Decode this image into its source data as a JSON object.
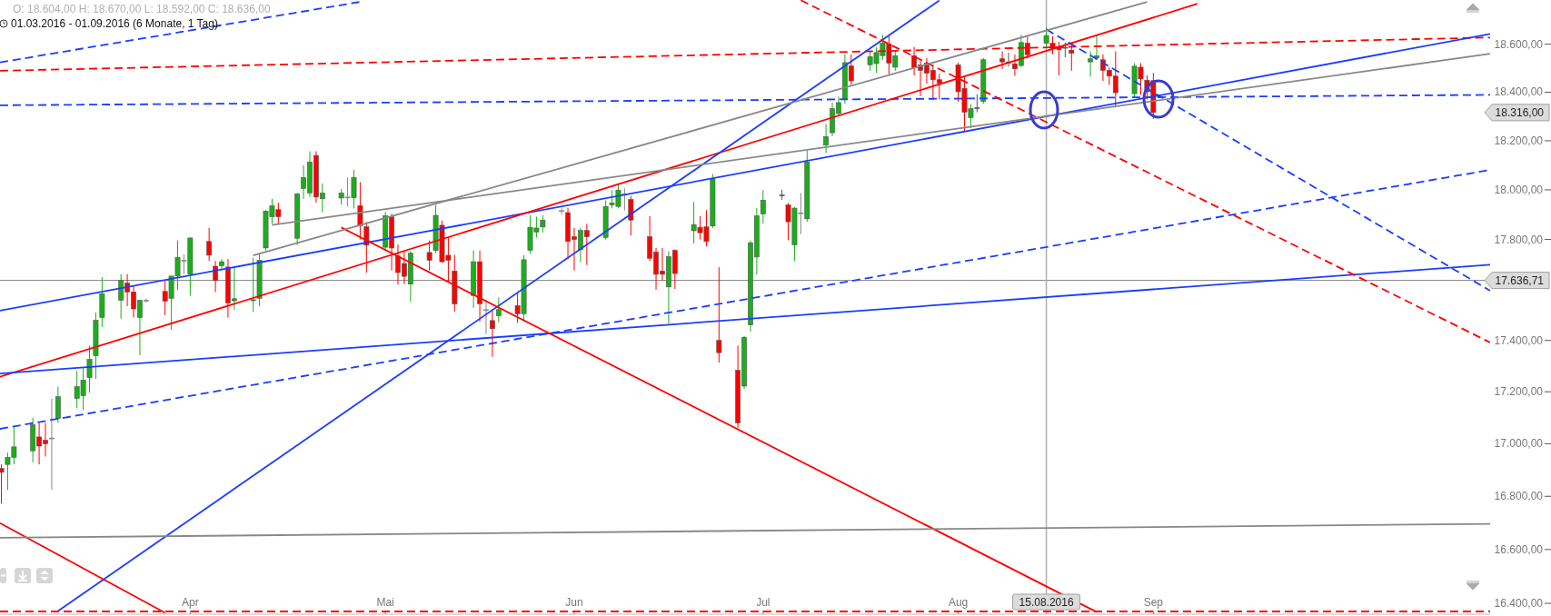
{
  "chart_data": {
    "type": "candlestick",
    "title": "O: 18.604,00  H: 18.670,00  L: 18.592,00  C: 18.636,00",
    "subtitle": "01.03.2016 - 01.09.2016 (6 Monate, 1 Tag)",
    "log": true,
    "xlim": [
      "2016-03-01T18:43",
      "2016-10-24T12:00"
    ],
    "ylim": [
      16360,
      18786
    ],
    "xticks": [
      {
        "value": "2016-04-01",
        "label": "Apr"
      },
      {
        "value": "2016-05-02",
        "label": "Mai"
      },
      {
        "value": "2016-06-01",
        "label": "Jun"
      },
      {
        "value": "2016-07-01",
        "label": "Jul"
      },
      {
        "value": "2016-08-01",
        "label": "Aug"
      },
      {
        "value": "2016-09-01",
        "label": "Sep"
      }
    ],
    "yticks": [
      {
        "value": 16400,
        "label": "16.400,00"
      },
      {
        "value": 16600,
        "label": "16.600,00"
      },
      {
        "value": 16800,
        "label": "16.800,00"
      },
      {
        "value": 17000,
        "label": "17.000,00"
      },
      {
        "value": 17200,
        "label": "17.200,00"
      },
      {
        "value": 17400,
        "label": "17.400,00"
      },
      {
        "value": 17800,
        "label": "17.800,00"
      },
      {
        "value": 18000,
        "label": "18.000,00"
      },
      {
        "value": 18200,
        "label": "18.200,00"
      },
      {
        "value": 18400,
        "label": "18.400,00"
      },
      {
        "value": 18600,
        "label": "18.600,00"
      }
    ],
    "x": [
      "2016-03-02",
      "2016-03-03",
      "2016-03-04",
      "2016-03-07",
      "2016-03-08",
      "2016-03-09",
      "2016-03-10",
      "2016-03-11",
      "2016-03-14",
      "2016-03-15",
      "2016-03-16",
      "2016-03-17",
      "2016-03-18",
      "2016-03-21",
      "2016-03-22",
      "2016-03-23",
      "2016-03-24",
      "2016-03-25",
      "2016-03-28",
      "2016-03-29",
      "2016-03-30",
      "2016-03-31",
      "2016-04-01",
      "2016-04-04",
      "2016-04-05",
      "2016-04-06",
      "2016-04-07",
      "2016-04-08",
      "2016-04-11",
      "2016-04-12",
      "2016-04-13",
      "2016-04-14",
      "2016-04-15",
      "2016-04-18",
      "2016-04-19",
      "2016-04-20",
      "2016-04-21",
      "2016-04-22",
      "2016-04-25",
      "2016-04-26",
      "2016-04-27",
      "2016-04-28",
      "2016-04-29",
      "2016-05-02",
      "2016-05-03",
      "2016-05-04",
      "2016-05-05",
      "2016-05-06",
      "2016-05-09",
      "2016-05-10",
      "2016-05-11",
      "2016-05-12",
      "2016-05-13",
      "2016-05-16",
      "2016-05-17",
      "2016-05-18",
      "2016-05-19",
      "2016-05-20",
      "2016-05-23",
      "2016-05-24",
      "2016-05-25",
      "2016-05-26",
      "2016-05-27",
      "2016-05-30",
      "2016-05-31",
      "2016-06-01",
      "2016-06-02",
      "2016-06-03",
      "2016-06-06",
      "2016-06-07",
      "2016-06-08",
      "2016-06-09",
      "2016-06-10",
      "2016-06-13",
      "2016-06-14",
      "2016-06-15",
      "2016-06-16",
      "2016-06-17",
      "2016-06-20",
      "2016-06-21",
      "2016-06-22",
      "2016-06-23",
      "2016-06-24",
      "2016-06-27",
      "2016-06-28",
      "2016-06-29",
      "2016-06-30",
      "2016-07-01",
      "2016-07-04",
      "2016-07-05",
      "2016-07-06",
      "2016-07-07",
      "2016-07-08",
      "2016-07-11",
      "2016-07-12",
      "2016-07-13",
      "2016-07-14",
      "2016-07-15",
      "2016-07-18",
      "2016-07-19",
      "2016-07-20",
      "2016-07-21",
      "2016-07-22",
      "2016-07-25",
      "2016-07-26",
      "2016-07-27",
      "2016-07-28",
      "2016-07-29",
      "2016-08-01",
      "2016-08-02",
      "2016-08-03",
      "2016-08-04",
      "2016-08-05",
      "2016-08-08",
      "2016-08-09",
      "2016-08-10",
      "2016-08-11",
      "2016-08-12",
      "2016-08-15",
      "2016-08-16",
      "2016-08-17",
      "2016-08-18",
      "2016-08-19",
      "2016-08-22",
      "2016-08-23",
      "2016-08-24",
      "2016-08-25",
      "2016-08-26",
      "2016-08-29",
      "2016-08-30",
      "2016-08-31",
      "2016-09-01"
    ],
    "ohlc": [
      [
        16906,
        16921,
        16772,
        16891
      ],
      [
        16921,
        16966,
        16824,
        16948
      ],
      [
        16948,
        17063,
        16921,
        16988
      ],
      [
        16973,
        17100,
        16929,
        17073
      ],
      [
        17026,
        17080,
        16921,
        16991
      ],
      [
        17013,
        17080,
        16951,
        17000
      ],
      [
        17022,
        17174,
        16824,
        17022
      ],
      [
        17097,
        17220,
        17080,
        17181
      ],
      [
        17174,
        17281,
        17136,
        17220
      ],
      [
        17185,
        17295,
        17129,
        17245
      ],
      [
        17255,
        17380,
        17197,
        17326
      ],
      [
        17340,
        17510,
        17250,
        17479
      ],
      [
        17490,
        17650,
        17452,
        17584
      ],
      [
        17558,
        17662,
        17485,
        17637
      ],
      [
        17626,
        17662,
        17535,
        17591
      ],
      [
        17591,
        17614,
        17490,
        17524
      ],
      [
        17490,
        17560,
        17342,
        17558
      ],
      [
        17558,
        17565,
        17550,
        17558
      ],
      [
        17593,
        17634,
        17499,
        17555
      ],
      [
        17566,
        17654,
        17441,
        17654
      ],
      [
        17654,
        17796,
        17598,
        17728
      ],
      [
        17717,
        17740,
        17662,
        17717
      ],
      [
        17662,
        17808,
        17576,
        17806
      ],
      [
        17792,
        17847,
        17714,
        17737
      ],
      [
        17693,
        17714,
        17590,
        17636
      ],
      [
        17695,
        17722,
        17676,
        17711
      ],
      [
        17690,
        17722,
        17490,
        17547
      ],
      [
        17556,
        17690,
        17520,
        17564
      ],
      [
        17558,
        17727,
        17512,
        17560
      ],
      [
        17566,
        17745,
        17535,
        17717
      ],
      [
        17766,
        17918,
        17755,
        17914
      ],
      [
        17891,
        17964,
        17863,
        17936
      ],
      [
        17920,
        17948,
        17863,
        17891
      ],
      [
        17805,
        17987,
        17777,
        17984
      ],
      [
        18006,
        18100,
        17964,
        18050
      ],
      [
        17987,
        18157,
        17971,
        18113
      ],
      [
        18140,
        18157,
        17948,
        17971
      ],
      [
        17964,
        18026,
        17909,
        17987
      ],
      [
        17967,
        18003,
        17940,
        17987
      ],
      [
        17971,
        18050,
        17932,
        17971
      ],
      [
        17968,
        18081,
        17925,
        18050
      ],
      [
        17936,
        18031,
        17800,
        17855
      ],
      [
        17851,
        17870,
        17667,
        17777
      ],
      [
        17769,
        17911,
        17753,
        17895
      ],
      [
        17891,
        17903,
        17676,
        17766
      ],
      [
        17734,
        17780,
        17620,
        17668
      ],
      [
        17704,
        17753,
        17622,
        17653
      ],
      [
        17622,
        17753,
        17552,
        17745
      ],
      [
        17748,
        17796,
        17676,
        17717
      ],
      [
        17756,
        17939,
        17745,
        17897
      ],
      [
        17857,
        17876,
        17706,
        17711
      ],
      [
        17737,
        17808,
        17630,
        17717
      ],
      [
        17674,
        17739,
        17513,
        17544
      ],
      [
        17577,
        17756,
        17528,
        17711
      ],
      [
        17711,
        17756,
        17474,
        17544
      ],
      [
        17521,
        17560,
        17425,
        17521
      ],
      [
        17478,
        17521,
        17336,
        17446
      ],
      [
        17497,
        17570,
        17471,
        17521
      ],
      [
        17537,
        17591,
        17469,
        17505
      ],
      [
        17505,
        17738,
        17474,
        17719
      ],
      [
        17757,
        17898,
        17743,
        17849
      ],
      [
        17830,
        17892,
        17808,
        17846
      ],
      [
        17850,
        17898,
        17828,
        17878
      ],
      [
        17916,
        17928,
        17900,
        17916
      ],
      [
        17908,
        17928,
        17721,
        17792
      ],
      [
        17811,
        17847,
        17676,
        17800
      ],
      [
        17759,
        17847,
        17709,
        17836
      ],
      [
        17836,
        17863,
        17698,
        17811
      ],
      [
        17808,
        17957,
        17800,
        17933
      ],
      [
        17939,
        17999,
        17925,
        17947
      ],
      [
        17933,
        18022,
        17925,
        17999
      ],
      [
        17984,
        18006,
        17917,
        17984
      ],
      [
        17961,
        17974,
        17816,
        17878
      ],
      [
        17811,
        17894,
        17714,
        17725
      ],
      [
        17750,
        17766,
        17600,
        17661
      ],
      [
        17674,
        17766,
        17637,
        17661
      ],
      [
        17611,
        17753,
        17466,
        17731
      ],
      [
        17756,
        17761,
        17603,
        17664
      ],
      [
        17835,
        17951,
        17784,
        17860
      ],
      [
        17849,
        17894,
        17800,
        17827
      ],
      [
        17851,
        17918,
        17772,
        17792
      ],
      [
        17854,
        18065,
        17846,
        18044
      ],
      [
        17400,
        17689,
        17313,
        17352
      ],
      [
        17283,
        17380,
        17060,
        17080
      ],
      [
        17222,
        17417,
        17211,
        17412
      ],
      [
        17461,
        17796,
        17434,
        17787
      ],
      [
        17730,
        17926,
        17660,
        17895
      ],
      [
        17903,
        17999,
        17864,
        17958
      ],
      [
        17979,
        18000,
        17960,
        17979
      ],
      [
        17939,
        17947,
        17797,
        17871
      ],
      [
        17778,
        17931,
        17714,
        17926
      ],
      [
        17907,
        17987,
        17821,
        17907
      ],
      [
        17883,
        18160,
        17871,
        18113
      ],
      [
        18182,
        18268,
        18150,
        18217
      ],
      [
        18233,
        18357,
        18219,
        18332
      ],
      [
        18312,
        18382,
        18300,
        18357
      ],
      [
        18372,
        18557,
        18352,
        18523
      ],
      [
        18509,
        18557,
        18430,
        18447
      ],
      [
        18514,
        18570,
        18489,
        18548
      ],
      [
        18519,
        18587,
        18480,
        18565
      ],
      [
        18552,
        18639,
        18535,
        18605
      ],
      [
        18602,
        18637,
        18475,
        18521
      ],
      [
        18504,
        18572,
        18489,
        18552
      ],
      [
        18552,
        18589,
        18469,
        18501
      ],
      [
        18513,
        18530,
        18384,
        18491
      ],
      [
        18521,
        18542,
        18435,
        18479
      ],
      [
        18491,
        18514,
        18367,
        18452
      ],
      [
        18452,
        18477,
        18370,
        18438
      ],
      [
        18514,
        18523,
        18360,
        18402
      ],
      [
        18416,
        18462,
        18236,
        18317
      ],
      [
        18295,
        18350,
        18252,
        18332
      ],
      [
        18336,
        18392,
        18317,
        18336
      ],
      [
        18362,
        18542,
        18352,
        18535
      ],
      [
        18539,
        18570,
        18497,
        18526
      ],
      [
        18526,
        18565,
        18506,
        18526
      ],
      [
        18518,
        18557,
        18468,
        18497
      ],
      [
        18511,
        18639,
        18504,
        18607
      ],
      [
        18604,
        18633,
        18539,
        18556
      ],
      [
        18604,
        18670,
        18592,
        18636
      ],
      [
        18604,
        18633,
        18558,
        18582
      ],
      [
        18590,
        18610,
        18470,
        18577
      ],
      [
        18587,
        18607,
        18545,
        18587
      ],
      [
        18575,
        18600,
        18489,
        18562
      ],
      [
        18526,
        18570,
        18465,
        18539
      ],
      [
        18542,
        18637,
        18539,
        18551
      ],
      [
        18535,
        18557,
        18447,
        18491
      ],
      [
        18491,
        18504,
        18430,
        18467
      ],
      [
        18467,
        18570,
        18340,
        18398
      ],
      [
        18394,
        18521,
        18377,
        18508
      ],
      [
        18504,
        18521,
        18389,
        18455
      ],
      [
        18450,
        18470,
        18370,
        18402
      ],
      [
        18448,
        18480,
        18290,
        18316
      ]
    ],
    "colors": [
      "#ff0000",
      "#1aaf1a",
      "#1aaf1a",
      "#1aaf1a",
      "#ff0000",
      "#ff0000",
      "#888888",
      "#1aaf1a",
      "#1aaf1a",
      "#1aaf1a",
      "#1aaf1a",
      "#1aaf1a",
      "#1aaf1a",
      "#1aaf1a",
      "#ff0000",
      "#ff0000",
      "#1aaf1a",
      "#888888",
      "#ff0000",
      "#1aaf1a",
      "#1aaf1a",
      "#888888",
      "#1aaf1a",
      "#ff0000",
      "#ff0000",
      "#1aaf1a",
      "#ff0000",
      "#1aaf1a",
      "#1aaf1a",
      "#1aaf1a",
      "#1aaf1a",
      "#1aaf1a",
      "#ff0000",
      "#1aaf1a",
      "#1aaf1a",
      "#1aaf1a",
      "#ff0000",
      "#1aaf1a",
      "#1aaf1a",
      "#888888",
      "#1aaf1a",
      "#ff0000",
      "#ff0000",
      "#1aaf1a",
      "#ff0000",
      "#ff0000",
      "#ff0000",
      "#1aaf1a",
      "#ff0000",
      "#1aaf1a",
      "#ff0000",
      "#ff0000",
      "#ff0000",
      "#1aaf1a",
      "#ff0000",
      "#888888",
      "#ff0000",
      "#1aaf1a",
      "#ff0000",
      "#1aaf1a",
      "#1aaf1a",
      "#1aaf1a",
      "#1aaf1a",
      "#888888",
      "#ff0000",
      "#ff0000",
      "#1aaf1a",
      "#ff0000",
      "#1aaf1a",
      "#1aaf1a",
      "#1aaf1a",
      "#888888",
      "#ff0000",
      "#ff0000",
      "#ff0000",
      "#ff0000",
      "#1aaf1a",
      "#ff0000",
      "#1aaf1a",
      "#ff0000",
      "#ff0000",
      "#1aaf1a",
      "#ff0000",
      "#ff0000",
      "#1aaf1a",
      "#1aaf1a",
      "#1aaf1a",
      "#1aaf1a",
      "#555555",
      "#ff0000",
      "#1aaf1a",
      "#888888",
      "#1aaf1a",
      "#1aaf1a",
      "#1aaf1a",
      "#1aaf1a",
      "#1aaf1a",
      "#ff0000",
      "#1aaf1a",
      "#1aaf1a",
      "#1aaf1a",
      "#ff0000",
      "#1aaf1a",
      "#ff0000",
      "#ff0000",
      "#ff0000",
      "#ff0000",
      "#ff0000",
      "#ff0000",
      "#ff0000",
      "#1aaf1a",
      "#555555",
      "#1aaf1a",
      "#ff0000",
      "#555555",
      "#ff0000",
      "#1aaf1a",
      "#ff0000",
      "#1aaf1a",
      "#ff0000",
      "#ff0000",
      "#555555",
      "#ff0000",
      "#1aaf1a",
      "#1aaf1a",
      "#ff0000",
      "#ff0000",
      "#ff0000",
      "#1aaf1a",
      "#ff0000",
      "#ff0000",
      "#ff0000"
    ],
    "series": [
      {
        "type": "line",
        "x": [
          "2016-03-01T18:43",
          "2016-04-28"
        ],
        "values": [
          18524,
          18778
        ],
        "color": "#1a3dff",
        "line_style": "dashed"
      },
      {
        "type": "line",
        "x": [
          "2016-03-01T18:43",
          "2016-10-24T12:00"
        ],
        "values": [
          18489,
          18628
        ],
        "color": "#ff0000",
        "line_style": "dashed"
      },
      {
        "type": "line",
        "x": [
          "2016-03-01T18:43",
          "2016-10-24T12:00"
        ],
        "values": [
          18346,
          18389
        ],
        "color": "#1a3dff",
        "line_style": "dashed"
      },
      {
        "type": "line",
        "x": [
          "2016-03-01T18:43",
          "2016-10-24T12:00"
        ],
        "values": [
          17517,
          18643
        ],
        "color": "#1a3dff",
        "line_style": "solid"
      },
      {
        "type": "line",
        "x": [
          "2016-03-01T18:43",
          "2016-09-08"
        ],
        "values": [
          17258,
          18770
        ],
        "color": "#ff0000",
        "line_style": "solid"
      },
      {
        "type": "line",
        "x": [
          "2016-03-01T18:43",
          "2016-10-24T12:00"
        ],
        "values": [
          17271,
          17699
        ],
        "color": "#1a3dff",
        "line_style": "solid"
      },
      {
        "type": "line",
        "x": [
          "2016-03-01T18:43",
          "2016-10-24T12:00"
        ],
        "values": [
          17057,
          18081
        ],
        "color": "#1a3dff",
        "line_style": "dashed"
      },
      {
        "type": "line",
        "x": [
          "2016-03-11",
          "2016-07-29"
        ],
        "values": [
          16372,
          18784
        ],
        "color": "#1a3dff",
        "line_style": "solid"
      },
      {
        "type": "line",
        "x": [
          "2016-03-01T18:43",
          "2016-03-28"
        ],
        "values": [
          16699,
          16365
        ],
        "color": "#ff0000",
        "line_style": "solid"
      },
      {
        "type": "line",
        "x": [
          "2016-04-25",
          "2016-08-23"
        ],
        "values": [
          17848,
          16368
        ],
        "color": "#ff0000",
        "line_style": "solid"
      },
      {
        "type": "line",
        "x": [
          "2016-07-07",
          "2016-10-24T12:00"
        ],
        "values": [
          18785,
          17392
        ],
        "color": "#ff0000",
        "line_style": "dashed"
      },
      {
        "type": "line",
        "x": [
          "2016-08-15",
          "2016-10-24T12:00"
        ],
        "values": [
          18662,
          17596
        ],
        "color": "#1a3dff",
        "line_style": "dashed"
      },
      {
        "type": "line",
        "x": [
          "2016-04-11",
          "2016-08-31"
        ],
        "values": [
          17736,
          18778
        ],
        "color": "#888888",
        "line_style": "solid"
      },
      {
        "type": "line",
        "x": [
          "2016-04-14",
          "2016-10-24T12:00"
        ],
        "values": [
          17858,
          18560
        ],
        "color": "#888888",
        "line_style": "solid"
      },
      {
        "type": "line",
        "x": [
          "2016-03-01T18:43",
          "2016-10-24T12:00"
        ],
        "values": [
          16644,
          16696
        ],
        "color": "#888888",
        "line_style": "solid"
      },
      {
        "type": "line",
        "x": [
          "2016-03-01T18:43",
          "2016-10-24T12:00"
        ],
        "values": [
          16370,
          16370
        ],
        "color": "#ff0000",
        "line_style": "dashed"
      }
    ],
    "ref_lines": [
      {
        "axis": "y",
        "value": 17636.71,
        "label": "17.636,71",
        "color": "#808080"
      },
      {
        "axis": "x",
        "value": "2016-08-15",
        "label": "15.08.2016",
        "color": "#b0b0b0"
      }
    ],
    "annotations": [
      "18.316,00"
    ]
  }
}
